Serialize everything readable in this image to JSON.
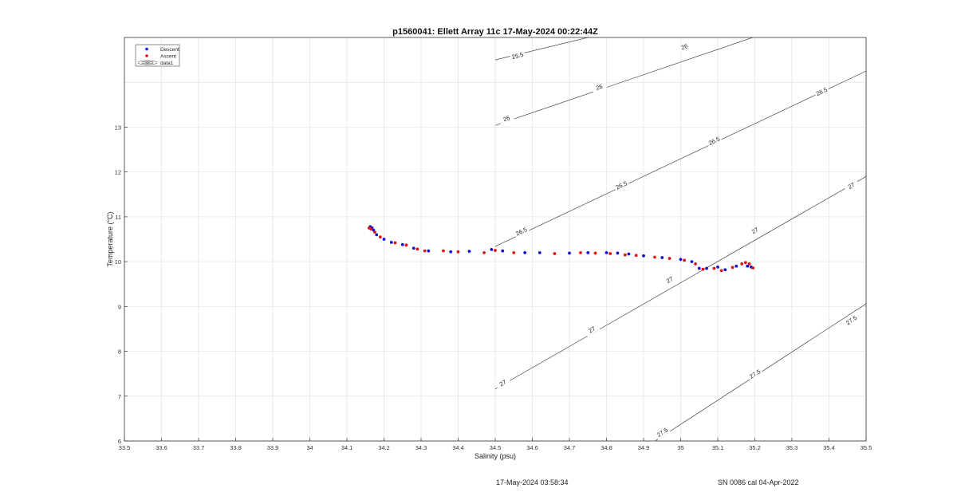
{
  "chart_data": {
    "type": "scatter",
    "title": "p1560041: Ellett Array 11c 17-May-2024 00:22:44Z",
    "xlabel": "Salinity (psu)",
    "ylabel": "Temperature (°C)",
    "xlim": [
      33.5,
      35.5
    ],
    "ylim": [
      6,
      15
    ],
    "xticks": [
      "33.5",
      "33.6",
      "33.7",
      "33.8",
      "33.9",
      "34",
      "34.1",
      "34.2",
      "34.3",
      "34.4",
      "34.5",
      "34.6",
      "34.7",
      "34.8",
      "34.9",
      "35",
      "35.1",
      "35.2",
      "35.3",
      "35.4",
      "35.5"
    ],
    "yticks": [
      "6",
      "7",
      "8",
      "9",
      "10",
      "11",
      "12",
      "13"
    ],
    "grid": true,
    "legend_position": "top-left",
    "legend": [
      {
        "label": "Descent",
        "color": "#1010d0",
        "marker": "dot"
      },
      {
        "label": "Ascent",
        "color": "#e01010",
        "marker": "dot"
      },
      {
        "label": "data1",
        "color": "#666666",
        "marker": "contour"
      }
    ],
    "series": [
      {
        "name": "Descent",
        "color": "#1010d0",
        "points": [
          [
            34.163,
            10.78
          ],
          [
            34.168,
            10.75
          ],
          [
            34.172,
            10.7
          ],
          [
            34.18,
            10.6
          ],
          [
            34.2,
            10.5
          ],
          [
            34.22,
            10.43
          ],
          [
            34.25,
            10.38
          ],
          [
            34.28,
            10.3
          ],
          [
            34.32,
            10.24
          ],
          [
            34.38,
            10.22
          ],
          [
            34.43,
            10.23
          ],
          [
            34.49,
            10.27
          ],
          [
            34.52,
            10.24
          ],
          [
            34.58,
            10.2
          ],
          [
            34.62,
            10.2
          ],
          [
            34.7,
            10.19
          ],
          [
            34.75,
            10.2
          ],
          [
            34.8,
            10.2
          ],
          [
            34.83,
            10.19
          ],
          [
            34.86,
            10.17
          ],
          [
            34.9,
            10.13
          ],
          [
            34.95,
            10.09
          ],
          [
            35.0,
            10.05
          ],
          [
            35.03,
            10.0
          ],
          [
            35.05,
            9.85
          ],
          [
            35.07,
            9.85
          ],
          [
            35.1,
            9.88
          ],
          [
            35.12,
            9.82
          ],
          [
            35.15,
            9.9
          ],
          [
            35.18,
            9.9
          ],
          [
            35.19,
            9.88
          ]
        ]
      },
      {
        "name": "Ascent",
        "color": "#e01010",
        "points": [
          [
            34.16,
            10.75
          ],
          [
            34.165,
            10.73
          ],
          [
            34.175,
            10.66
          ],
          [
            34.19,
            10.55
          ],
          [
            34.23,
            10.42
          ],
          [
            34.26,
            10.37
          ],
          [
            34.29,
            10.28
          ],
          [
            34.31,
            10.24
          ],
          [
            34.36,
            10.24
          ],
          [
            34.4,
            10.22
          ],
          [
            34.47,
            10.2
          ],
          [
            34.5,
            10.25
          ],
          [
            34.55,
            10.2
          ],
          [
            34.66,
            10.18
          ],
          [
            34.73,
            10.2
          ],
          [
            34.77,
            10.19
          ],
          [
            34.81,
            10.18
          ],
          [
            34.85,
            10.15
          ],
          [
            34.88,
            10.14
          ],
          [
            34.93,
            10.1
          ],
          [
            34.97,
            10.07
          ],
          [
            35.01,
            10.03
          ],
          [
            35.04,
            9.95
          ],
          [
            35.06,
            9.83
          ],
          [
            35.09,
            9.85
          ],
          [
            35.11,
            9.8
          ],
          [
            35.14,
            9.87
          ],
          [
            35.165,
            9.95
          ],
          [
            35.175,
            9.98
          ],
          [
            35.185,
            9.95
          ],
          [
            35.195,
            9.86
          ]
        ]
      }
    ],
    "contours": [
      {
        "label": "25.5",
        "points": [
          [
            34.5,
            14.5
          ],
          [
            35.25,
            16.0
          ]
        ],
        "label_positions": [
          [
            34.56,
            14.6
          ]
        ]
      },
      {
        "label": "26",
        "points": [
          [
            34.5,
            13.04
          ],
          [
            35.35,
            15.44
          ]
        ],
        "label_positions": [
          [
            34.53,
            13.2
          ],
          [
            34.78,
            13.9
          ],
          [
            35.01,
            14.8
          ],
          [
            35.33,
            15.4
          ]
        ]
      },
      {
        "label": "26.5",
        "points": [
          [
            34.5,
            10.34
          ],
          [
            35.5,
            14.25
          ]
        ],
        "label_positions": [
          [
            34.57,
            10.68
          ],
          [
            34.84,
            11.71
          ],
          [
            35.09,
            12.7
          ],
          [
            35.38,
            13.8
          ]
        ]
      },
      {
        "label": "27",
        "points": [
          [
            34.5,
            7.16
          ],
          [
            35.5,
            11.9
          ]
        ],
        "label_positions": [
          [
            34.52,
            7.3
          ],
          [
            34.76,
            8.49
          ],
          [
            34.97,
            9.6
          ],
          [
            35.2,
            10.7
          ],
          [
            35.46,
            11.7
          ]
        ]
      },
      {
        "label": "27.5",
        "points": [
          [
            34.92,
            5.94
          ],
          [
            35.5,
            9.06
          ]
        ],
        "label_positions": [
          [
            34.95,
            6.2
          ],
          [
            35.2,
            7.5
          ],
          [
            35.46,
            8.7
          ]
        ]
      }
    ]
  },
  "footer": {
    "timestamp": "17-May-2024 03:58:34",
    "sensor": "SN 0086 cal 04-Apr-2022"
  }
}
